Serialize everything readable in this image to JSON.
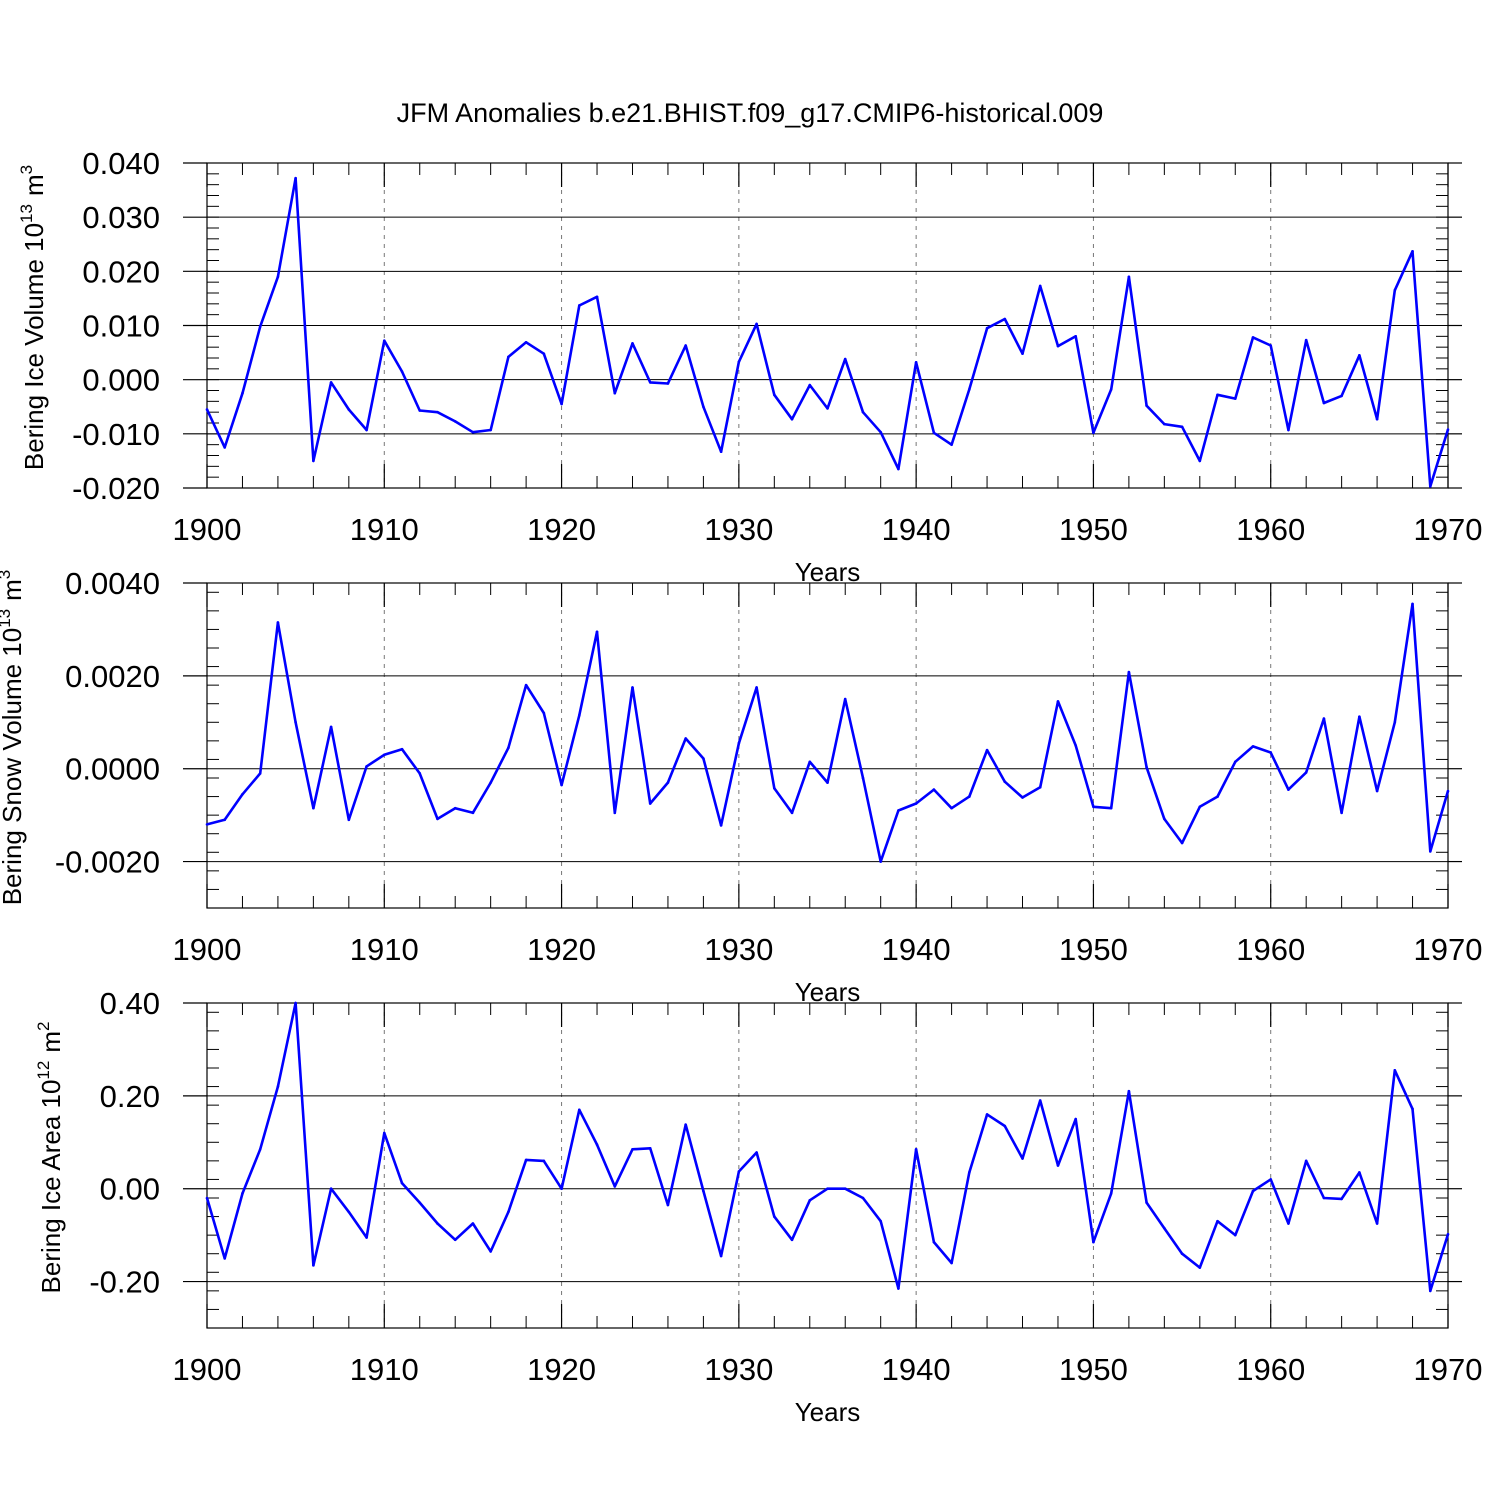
{
  "figure": {
    "title": "JFM Anomalies b.e21.BHIST.f09_g17.CMIP6-historical.009"
  },
  "chart_data": [
    {
      "type": "line",
      "ylabel": "Bering Ice Volume 10",
      "ylabel_exp": "13",
      "ylabel_unit": "m",
      "ylabel_unit_exp": "3",
      "xlabel": "Years",
      "xlim": [
        1900,
        1970
      ],
      "ylim": [
        -0.02,
        0.04
      ],
      "yticks": [
        -0.02,
        -0.01,
        0.0,
        0.01,
        0.02,
        0.03,
        0.04
      ],
      "ytick_labels": [
        "-0.020",
        "-0.010",
        "0.000",
        "0.010",
        "0.020",
        "0.030",
        "0.040"
      ],
      "xticks": [
        1900,
        1910,
        1920,
        1930,
        1940,
        1950,
        1960,
        1970
      ],
      "xtick_labels": [
        "1900",
        "1910",
        "1920",
        "1930",
        "1940",
        "1950",
        "1960",
        "1970"
      ],
      "grid_x": [
        1910,
        1920,
        1930,
        1940,
        1950,
        1960
      ],
      "series_color": "#0000ff",
      "x_start": 1900,
      "values": [
        -0.0055,
        -0.0125,
        -0.0025,
        0.0098,
        0.019,
        0.0372,
        -0.015,
        -0.0005,
        -0.0055,
        -0.0093,
        0.0072,
        0.0015,
        -0.0057,
        -0.006,
        -0.0077,
        -0.0097,
        -0.0093,
        0.0042,
        0.0069,
        0.0048,
        -0.0045,
        0.0137,
        0.0153,
        -0.0025,
        0.0067,
        -0.0005,
        -0.0007,
        0.0063,
        -0.005,
        -0.0133,
        0.0033,
        0.0103,
        -0.0028,
        -0.0073,
        -0.001,
        -0.0053,
        0.0038,
        -0.006,
        -0.0097,
        -0.0165,
        0.0032,
        -0.0098,
        -0.012,
        -0.0018,
        0.0095,
        0.0112,
        0.0048,
        0.0173,
        0.0062,
        0.008,
        -0.0098,
        -0.0018,
        0.019,
        -0.0048,
        -0.0082,
        -0.0087,
        -0.015,
        -0.0028,
        -0.0035,
        0.0078,
        0.0063,
        -0.0093,
        0.0073,
        -0.0043,
        -0.003,
        0.0045,
        -0.0073,
        0.0165,
        0.0237,
        -0.0197,
        -0.0092
      ]
    },
    {
      "type": "line",
      "ylabel": "Bering Snow Volume 10",
      "ylabel_exp": "13",
      "ylabel_unit": "m",
      "ylabel_unit_exp": "3",
      "xlabel": "Years",
      "xlim": [
        1900,
        1970
      ],
      "ylim": [
        -0.003,
        0.004
      ],
      "yticks": [
        -0.002,
        0.0,
        0.002,
        0.004
      ],
      "ytick_labels": [
        "-0.0020",
        "0.0000",
        "0.0020",
        "0.0040"
      ],
      "xticks": [
        1900,
        1910,
        1920,
        1930,
        1940,
        1950,
        1960,
        1970
      ],
      "xtick_labels": [
        "1900",
        "1910",
        "1920",
        "1930",
        "1940",
        "1950",
        "1960",
        "1970"
      ],
      "grid_x": [
        1910,
        1920,
        1930,
        1940,
        1950,
        1960
      ],
      "series_color": "#0000ff",
      "x_start": 1900,
      "values": [
        -0.0012,
        -0.0011,
        -0.00055,
        -0.0001,
        0.00315,
        0.001,
        -0.00085,
        0.0009,
        -0.0011,
        5e-05,
        0.0003,
        0.00042,
        -0.0001,
        -0.00108,
        -0.00085,
        -0.00095,
        -0.0003,
        0.00045,
        0.0018,
        0.0012,
        -0.00035,
        0.00115,
        0.00295,
        -0.00095,
        0.00175,
        -0.00075,
        -0.0003,
        0.00065,
        0.00022,
        -0.00122,
        0.00055,
        0.00175,
        -0.00042,
        -0.00095,
        0.00015,
        -0.0003,
        0.0015,
        -0.0002,
        -0.002,
        -0.0009,
        -0.00075,
        -0.00045,
        -0.00085,
        -0.0006,
        0.0004,
        -0.00028,
        -0.00062,
        -0.0004,
        0.00145,
        0.0005,
        -0.00082,
        -0.00085,
        0.00208,
        3e-05,
        -0.00108,
        -0.0016,
        -0.00082,
        -0.0006,
        0.00015,
        0.00048,
        0.00035,
        -0.00045,
        -8e-05,
        0.00108,
        -0.00095,
        0.00112,
        -0.00048,
        0.001,
        0.00355,
        -0.00178,
        -0.00048
      ]
    },
    {
      "type": "line",
      "ylabel": "Bering Ice Area 10",
      "ylabel_exp": "12",
      "ylabel_unit": "m",
      "ylabel_unit_exp": "2",
      "xlabel": "Years",
      "xlim": [
        1900,
        1970
      ],
      "ylim": [
        -0.3,
        0.4
      ],
      "yticks": [
        -0.2,
        0.0,
        0.2,
        0.4
      ],
      "ytick_labels": [
        "-0.20",
        "0.00",
        "0.20",
        "0.40"
      ],
      "xticks": [
        1900,
        1910,
        1920,
        1930,
        1940,
        1950,
        1960,
        1970
      ],
      "xtick_labels": [
        "1900",
        "1910",
        "1920",
        "1930",
        "1940",
        "1950",
        "1960",
        "1970"
      ],
      "grid_x": [
        1910,
        1920,
        1930,
        1940,
        1950,
        1960
      ],
      "series_color": "#0000ff",
      "x_start": 1900,
      "values": [
        -0.02,
        -0.15,
        -0.01,
        0.085,
        0.22,
        0.4,
        -0.165,
        0.0,
        -0.05,
        -0.105,
        0.12,
        0.012,
        -0.03,
        -0.075,
        -0.11,
        -0.075,
        -0.135,
        -0.05,
        0.062,
        0.06,
        0.0,
        0.17,
        0.095,
        0.005,
        0.085,
        0.087,
        -0.035,
        0.138,
        -0.005,
        -0.145,
        0.037,
        0.078,
        -0.06,
        -0.11,
        -0.025,
        0.0,
        0.0,
        -0.02,
        -0.07,
        -0.215,
        0.085,
        -0.115,
        -0.16,
        0.035,
        0.16,
        0.135,
        0.065,
        0.19,
        0.05,
        0.15,
        -0.115,
        -0.01,
        0.21,
        -0.03,
        -0.085,
        -0.14,
        -0.17,
        -0.07,
        -0.1,
        -0.005,
        0.02,
        -0.075,
        0.06,
        -0.02,
        -0.022,
        0.035,
        -0.075,
        0.255,
        0.172,
        -0.22,
        -0.098
      ]
    }
  ]
}
